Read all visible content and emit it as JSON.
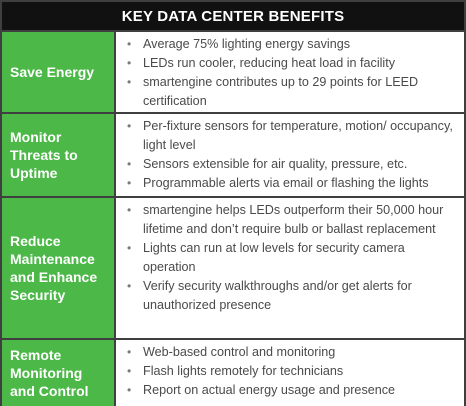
{
  "title": "KEY DATA CENTER BENEFITS",
  "bullet_char": "•",
  "rows": [
    {
      "label": "Save Energy",
      "items": [
        "Average 75% lighting energy savings",
        "LEDs run cooler, reducing heat load in facility",
        "smartengine contributes up to 29 points for LEED certification"
      ]
    },
    {
      "label": "Monitor Threats to Uptime",
      "items": [
        "Per-fixture sensors for temperature, motion/ occupancy, light level",
        "Sensors extensible for air quality, pressure, etc.",
        "Programmable alerts via email or flashing the lights"
      ]
    },
    {
      "label": "Reduce Maintenance and Enhance Security",
      "items": [
        "smartengine helps LEDs outperform their 50,000 hour lifetime and don’t require bulb or ballast replacement",
        "Lights can run at low levels for security camera operation",
        "Verify security walkthroughs and/or get alerts for unauthorized presence"
      ]
    },
    {
      "label": "Remote Monitoring and Control",
      "items": [
        "Web-based control and monitoring",
        "Flash lights remotely for technicians",
        "Report on actual energy usage and presence"
      ]
    }
  ],
  "colors": {
    "header_bg": "#111111",
    "label_bg": "#4cb848",
    "border": "#3f3f3f",
    "text": "#4a4a4a"
  }
}
